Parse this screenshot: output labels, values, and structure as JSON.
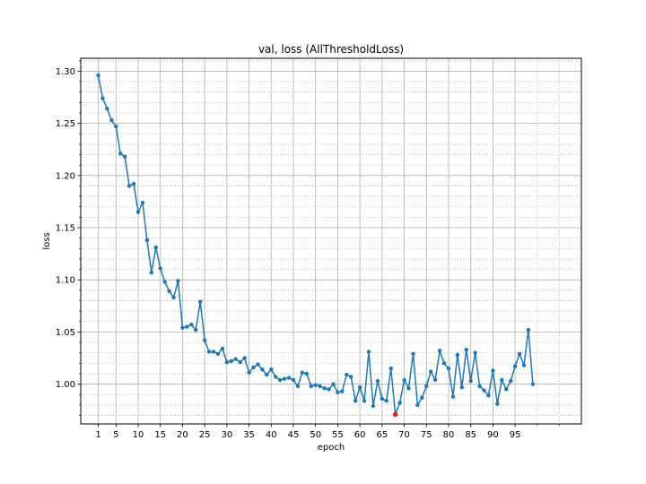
{
  "colors": {
    "line": "#1f77b4",
    "best_marker": "#d62728",
    "major_grid": "#b0b0b0",
    "minor_grid": "#b0b0b0",
    "axes": "#000000"
  },
  "chart_data": {
    "type": "line",
    "title": "val, loss (AllThresholdLoss)",
    "xlabel": "epoch",
    "ylabel": "loss",
    "grid": "major and minor (dotted)",
    "xlim": [
      -2.95,
      109.95
    ],
    "ylim": [
      0.9618,
      1.3124
    ],
    "x_ticks": [
      1,
      5,
      10,
      15,
      20,
      25,
      30,
      35,
      40,
      45,
      50,
      55,
      60,
      65,
      70,
      75,
      80,
      85,
      90,
      95
    ],
    "x_minor_ticks": [
      100,
      105
    ],
    "y_ticks": [
      1.0,
      1.05,
      1.1,
      1.15,
      1.2,
      1.25,
      1.3
    ],
    "y_tick_labels": [
      "1.00",
      "1.05",
      "1.10",
      "1.15",
      "1.20",
      "1.25",
      "1.30"
    ],
    "y_minor_step": 0.01,
    "series": [
      {
        "x": [
          1,
          2,
          3,
          4,
          5,
          6,
          7,
          8,
          9,
          10,
          11,
          12,
          13,
          14,
          15,
          16,
          17,
          18,
          19,
          20,
          21,
          22,
          23,
          24,
          25,
          26,
          27,
          28,
          29,
          30,
          31,
          32,
          33,
          34,
          35,
          36,
          37,
          38,
          39,
          40,
          41,
          42,
          43,
          44,
          45,
          46,
          47,
          48,
          49,
          50,
          51,
          52,
          53,
          54,
          55,
          56,
          57,
          58,
          59,
          60,
          61,
          62,
          63,
          64,
          65,
          66,
          67,
          68,
          69,
          70,
          71,
          72,
          73,
          74,
          75,
          76,
          77,
          78,
          79,
          80,
          81,
          82,
          83,
          84,
          85,
          86,
          87,
          88,
          89,
          90,
          91,
          92,
          93,
          94,
          95,
          96,
          97,
          98,
          99
        ],
        "values": [
          1.296,
          1.274,
          1.264,
          1.253,
          1.247,
          1.221,
          1.218,
          1.19,
          1.192,
          1.165,
          1.174,
          1.138,
          1.107,
          1.131,
          1.111,
          1.098,
          1.089,
          1.083,
          1.099,
          1.054,
          1.055,
          1.057,
          1.052,
          1.079,
          1.042,
          1.031,
          1.031,
          1.029,
          1.034,
          1.021,
          1.022,
          1.024,
          1.021,
          1.025,
          1.011,
          1.016,
          1.019,
          1.014,
          1.009,
          1.014,
          1.007,
          1.004,
          1.005,
          1.006,
          1.004,
          0.998,
          1.011,
          1.01,
          0.998,
          0.999,
          0.998,
          0.996,
          0.995,
          1.0,
          0.992,
          0.993,
          1.009,
          1.007,
          0.984,
          0.997,
          0.984,
          1.031,
          0.979,
          1.003,
          0.986,
          0.984,
          1.015,
          0.971,
          0.982,
          1.004,
          0.996,
          1.029,
          0.98,
          0.987,
          0.998,
          1.012,
          1.004,
          1.032,
          1.02,
          1.015,
          0.988,
          1.028,
          0.997,
          1.033,
          1.003,
          1.03,
          0.998,
          0.994,
          0.989,
          1.013,
          0.981,
          1.004,
          0.995,
          1.003,
          1.017,
          1.029,
          1.018,
          1.052,
          1.0
        ]
      }
    ],
    "best_point": {
      "x": 68,
      "y": 0.971
    }
  }
}
